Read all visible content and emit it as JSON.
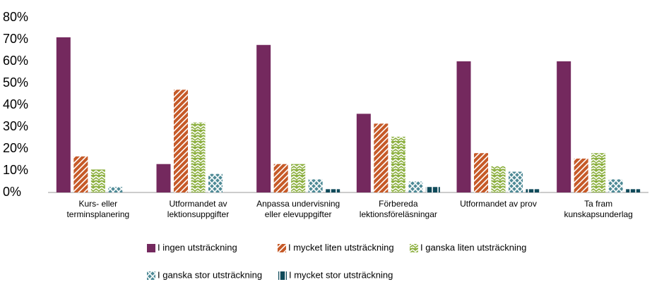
{
  "chart_data": {
    "type": "bar",
    "categories": [
      [
        "Kurs- eller",
        "terminsplanering"
      ],
      [
        "Utformandet av",
        "lektionsuppgifter"
      ],
      [
        "Anpassa undervisning",
        "eller elevuppgifter"
      ],
      [
        "Förbereda",
        "lektionsföreläsningar"
      ],
      [
        "Utformandet av prov"
      ],
      [
        "Ta fram",
        "kunskapsunderlag"
      ]
    ],
    "series": [
      {
        "name": "I ingen utsträckning",
        "color": "#74295e",
        "values": [
          71,
          13,
          67.5,
          36,
          60,
          60
        ]
      },
      {
        "name": "I mycket liten utsträckning",
        "color": "#c65a28",
        "values": [
          16.5,
          47,
          13,
          31.5,
          18,
          15.5
        ]
      },
      {
        "name": "I ganska liten utsträckning",
        "color": "#8db040",
        "values": [
          10.5,
          32,
          13,
          25.5,
          12,
          18
        ]
      },
      {
        "name": "I ganska stor utsträckning",
        "color": "#4e8a96",
        "values": [
          2.5,
          8.5,
          6,
          5,
          9.5,
          6
        ]
      },
      {
        "name": "I mycket stor utsträckning",
        "color": "#0f4a5a",
        "values": [
          0,
          0,
          1.5,
          2.5,
          1.5,
          1.5
        ]
      }
    ],
    "ylim": [
      0,
      80
    ],
    "yticks": [
      {
        "value": 0,
        "label": "0%"
      },
      {
        "value": 10,
        "label": "10%"
      },
      {
        "value": 20,
        "label": "20%"
      },
      {
        "value": 30,
        "label": "30%"
      },
      {
        "value": 40,
        "label": "40%"
      },
      {
        "value": 50,
        "label": "50%"
      },
      {
        "value": 60,
        "label": "60%"
      },
      {
        "value": 70,
        "label": "70%"
      },
      {
        "value": 80,
        "label": "80%"
      }
    ],
    "grid": false
  }
}
